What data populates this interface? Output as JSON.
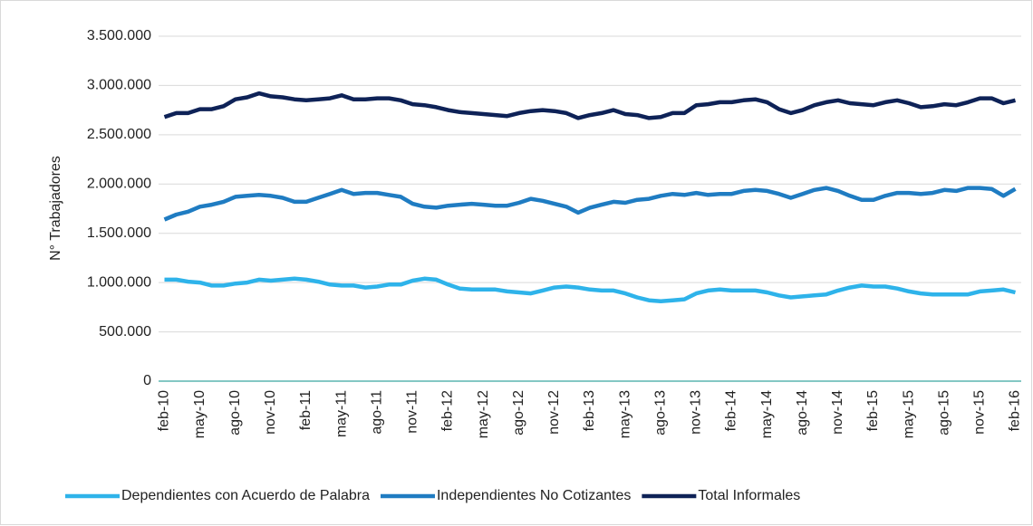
{
  "chart_data": {
    "type": "line",
    "y_label": "N° Trabajadores",
    "categories": [
      "feb-10",
      null,
      null,
      "may-10",
      null,
      null,
      "ago-10",
      null,
      null,
      "nov-10",
      null,
      null,
      "feb-11",
      null,
      null,
      "may-11",
      null,
      null,
      "ago-11",
      null,
      null,
      "nov-11",
      null,
      null,
      "feb-12",
      null,
      null,
      "may-12",
      null,
      null,
      "ago-12",
      null,
      null,
      "nov-12",
      null,
      null,
      "feb-13",
      null,
      null,
      "may-13",
      null,
      null,
      "ago-13",
      null,
      null,
      "nov-13",
      null,
      null,
      "feb-14",
      null,
      null,
      "may-14",
      null,
      null,
      "ago-14",
      null,
      null,
      "nov-14",
      null,
      null,
      "feb-15",
      null,
      null,
      "may-15",
      null,
      null,
      "ago-15",
      null,
      null,
      "nov-15",
      null,
      null,
      "feb-16"
    ],
    "series": [
      {
        "name": "Dependientes con Acuerdo de Palabra",
        "color": "#2eb3ea",
        "values": [
          1030000,
          1030000,
          1010000,
          1000000,
          970000,
          970000,
          990000,
          1000000,
          1030000,
          1020000,
          1030000,
          1040000,
          1030000,
          1010000,
          980000,
          970000,
          970000,
          950000,
          960000,
          980000,
          980000,
          1020000,
          1040000,
          1030000,
          980000,
          940000,
          930000,
          930000,
          930000,
          910000,
          900000,
          890000,
          920000,
          950000,
          960000,
          950000,
          930000,
          920000,
          920000,
          890000,
          850000,
          820000,
          810000,
          820000,
          830000,
          890000,
          920000,
          930000,
          920000,
          920000,
          920000,
          900000,
          870000,
          850000,
          860000,
          870000,
          880000,
          920000,
          950000,
          970000,
          960000,
          960000,
          940000,
          910000,
          890000,
          880000,
          880000,
          880000,
          880000,
          910000,
          920000,
          930000,
          900000
        ]
      },
      {
        "name": "Independientes No Cotizantes",
        "color": "#1f7cc2",
        "values": [
          1640000,
          1690000,
          1720000,
          1770000,
          1790000,
          1820000,
          1870000,
          1880000,
          1890000,
          1880000,
          1860000,
          1820000,
          1820000,
          1860000,
          1900000,
          1940000,
          1900000,
          1910000,
          1910000,
          1890000,
          1870000,
          1800000,
          1770000,
          1760000,
          1780000,
          1790000,
          1800000,
          1790000,
          1780000,
          1780000,
          1810000,
          1850000,
          1830000,
          1800000,
          1770000,
          1710000,
          1760000,
          1790000,
          1820000,
          1810000,
          1840000,
          1850000,
          1880000,
          1900000,
          1890000,
          1910000,
          1890000,
          1900000,
          1900000,
          1930000,
          1940000,
          1930000,
          1900000,
          1860000,
          1900000,
          1940000,
          1960000,
          1930000,
          1880000,
          1840000,
          1840000,
          1880000,
          1910000,
          1910000,
          1900000,
          1910000,
          1940000,
          1930000,
          1960000,
          1960000,
          1950000,
          1880000,
          1950000
        ]
      },
      {
        "name": "Total Informales",
        "color": "#0e2257",
        "values": [
          2680000,
          2720000,
          2720000,
          2760000,
          2760000,
          2790000,
          2860000,
          2880000,
          2920000,
          2890000,
          2880000,
          2860000,
          2850000,
          2860000,
          2870000,
          2900000,
          2860000,
          2860000,
          2870000,
          2870000,
          2850000,
          2810000,
          2800000,
          2780000,
          2750000,
          2730000,
          2720000,
          2710000,
          2700000,
          2690000,
          2720000,
          2740000,
          2750000,
          2740000,
          2720000,
          2670000,
          2700000,
          2720000,
          2750000,
          2710000,
          2700000,
          2670000,
          2680000,
          2720000,
          2720000,
          2800000,
          2810000,
          2830000,
          2830000,
          2850000,
          2860000,
          2830000,
          2760000,
          2720000,
          2750000,
          2800000,
          2830000,
          2850000,
          2820000,
          2810000,
          2800000,
          2830000,
          2850000,
          2820000,
          2780000,
          2790000,
          2810000,
          2800000,
          2830000,
          2870000,
          2870000,
          2820000,
          2850000
        ]
      }
    ],
    "ylim": [
      0,
      3500000
    ],
    "yticks": [
      0,
      {
        "value": 500000,
        "label": "500.000"
      },
      {
        "value": 1000000,
        "label": "1.000.000"
      },
      {
        "value": 1500000,
        "label": "1.500.000"
      },
      {
        "value": 2000000,
        "label": "2.000.000"
      },
      {
        "value": 2500000,
        "label": "2.500.000"
      },
      {
        "value": 3000000,
        "label": "3.000.000"
      },
      {
        "value": 3500000,
        "label": "3.500.000"
      }
    ],
    "grid": true,
    "legend": "bottom"
  }
}
